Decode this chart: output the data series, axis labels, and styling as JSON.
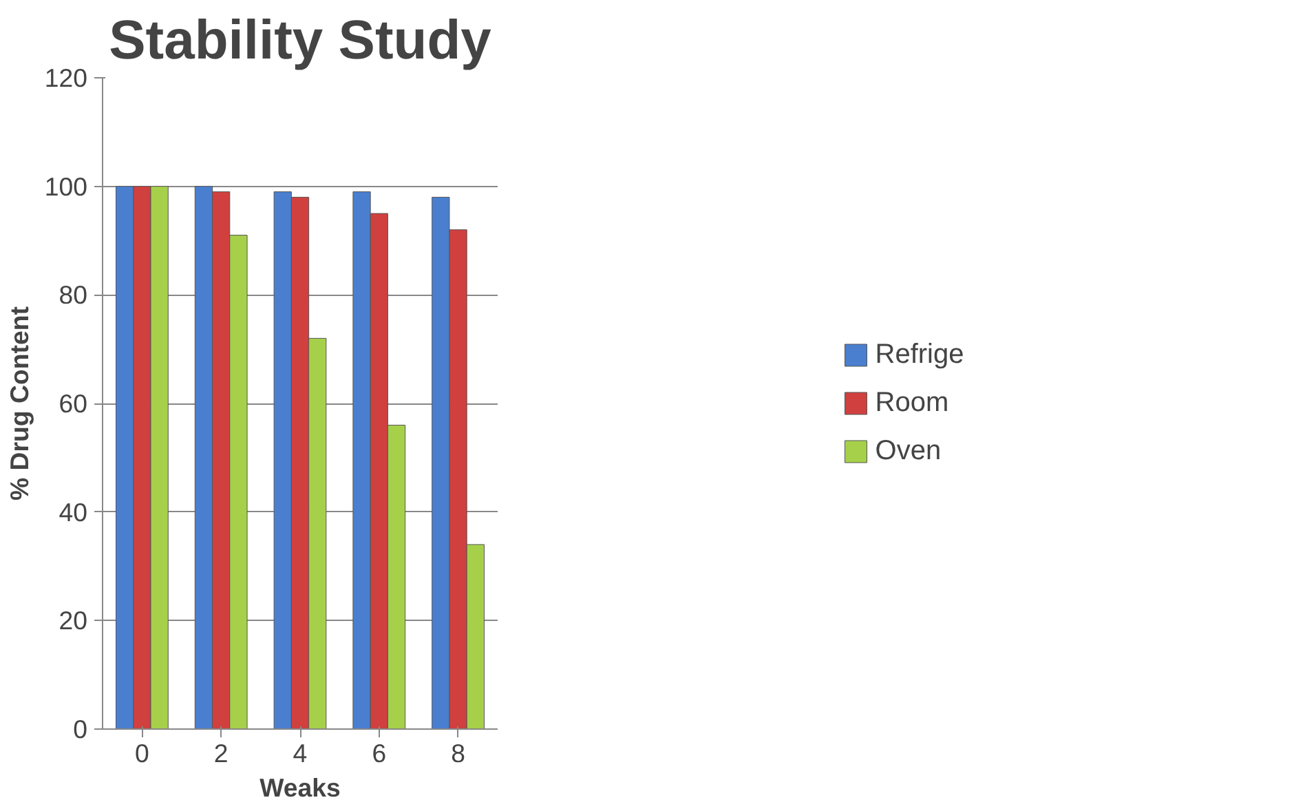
{
  "chart_data": {
    "type": "bar",
    "title": "Stability Study",
    "xlabel": "Weaks",
    "ylabel": "% Drug Content",
    "categories": [
      "0",
      "2",
      "4",
      "6",
      "8"
    ],
    "series": [
      {
        "name": "Refrige",
        "color": "#4a7fd0",
        "values": [
          100,
          100,
          99,
          99,
          98
        ]
      },
      {
        "name": "Room",
        "color": "#d0403f",
        "values": [
          100,
          99,
          98,
          95,
          92
        ]
      },
      {
        "name": "Oven",
        "color": "#a6d04a",
        "values": [
          100,
          91,
          72,
          56,
          34
        ]
      }
    ],
    "ylim": [
      0,
      120
    ],
    "yticks": [
      0,
      20,
      40,
      60,
      80,
      100,
      120
    ],
    "grid": "y",
    "legend": "right"
  }
}
